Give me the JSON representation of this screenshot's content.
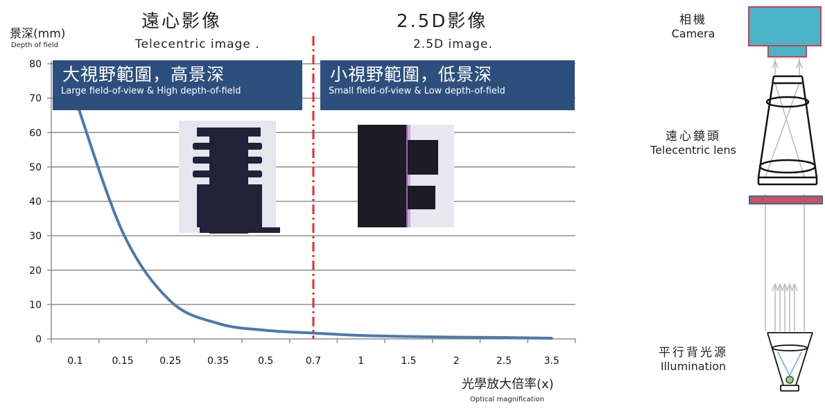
{
  "header": {
    "ylabel_zh": "景深(mm)",
    "ylabel_en": "Depth of field",
    "left_title_zh": "遠心影像",
    "left_title_en": "Telecentric image .",
    "right_title_zh": "2.5D影像",
    "right_title_en": "2.5D image.",
    "xlabel_zh": "光學放大倍率(x)",
    "xlabel_en": "Optical magnification"
  },
  "banners": {
    "left_zh": "大視野範圍，高景深",
    "left_en": "Large field-of-view & High depth-of-field",
    "right_zh": "小視野範圍，低景深",
    "right_en": "Small field-of-view & Low depth-of-field"
  },
  "diagram": {
    "camera_zh": "相機",
    "camera_en": "Camera",
    "lens_zh": "遠心鏡頭",
    "lens_en": "Telecentric lens",
    "light_zh": "平行背光源",
    "light_en": "Illumination"
  },
  "colors": {
    "curve": "#4a79b0",
    "divider": "#e03030",
    "banner": "#2d4f7d",
    "camera": "#4ab3c8",
    "camera_border": "#d04050",
    "filter": "#d04f5e"
  },
  "chart_data": {
    "type": "line",
    "categories": [
      "0.1",
      "0.15",
      "0.25",
      "0.35",
      "0.5",
      "0.7",
      "1",
      "1.5",
      "2",
      "2.5",
      "3.5"
    ],
    "series": [
      {
        "values": [
          70,
          31,
          11,
          4.5,
          2.5,
          1.7,
          1.0,
          0.7,
          0.5,
          0.4,
          0.2
        ]
      }
    ],
    "yticks": [
      0,
      10,
      20,
      30,
      40,
      50,
      60,
      70,
      80
    ],
    "ylim": [
      0,
      80
    ],
    "grid": true,
    "divider_at_category": "0.7"
  }
}
